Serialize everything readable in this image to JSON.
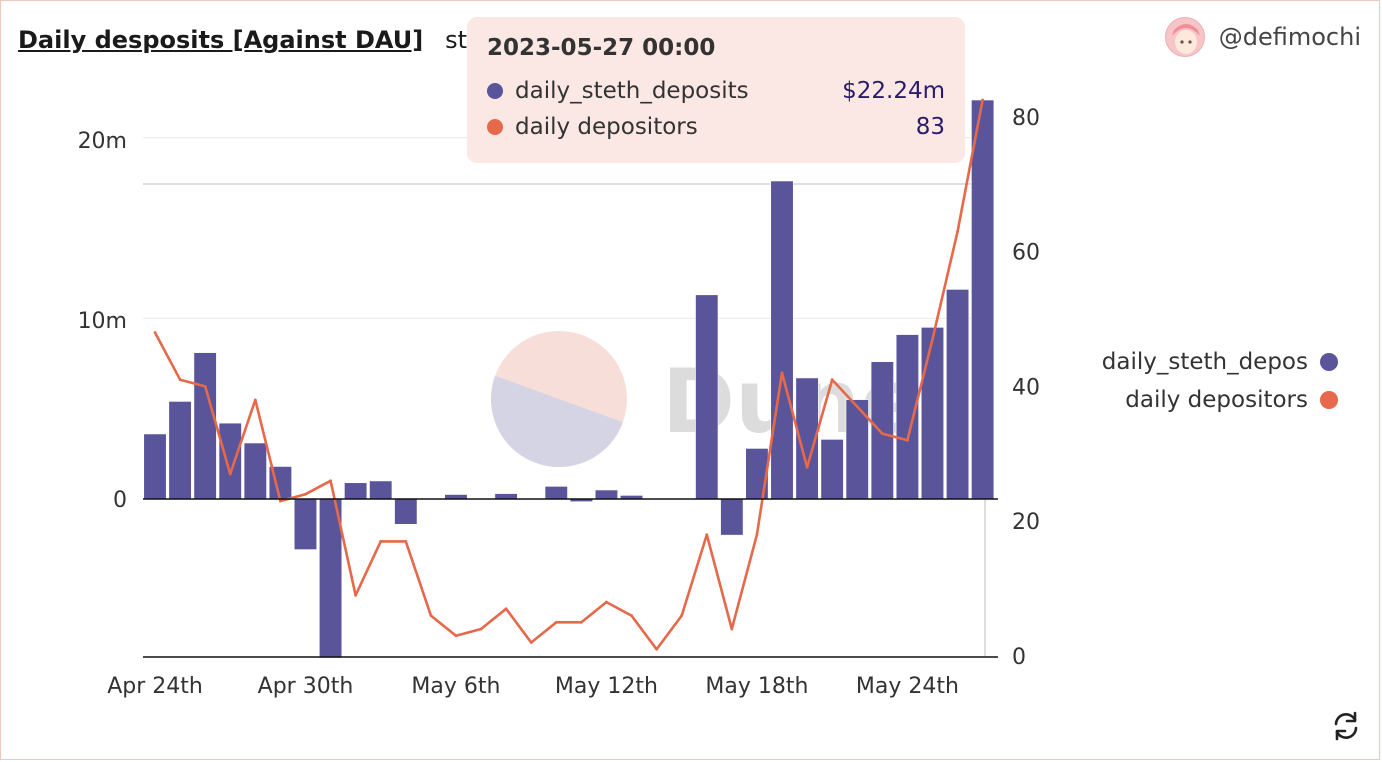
{
  "header": {
    "title": "Daily desposits [Against DAU]",
    "subtitle": "stET"
  },
  "author": {
    "name": "@defimochi",
    "avatar_icon": "anime-avatar-icon"
  },
  "watermark": "Dune",
  "colors": {
    "bars": "#5a559a",
    "line": "#e5694a",
    "watermark_top": "#f8ded8",
    "watermark_bottom": "#d5d4e4"
  },
  "tooltip": {
    "date": "2023-05-27 00:00",
    "rows": [
      {
        "name": "daily_steth_deposits",
        "value": "$22.24m"
      },
      {
        "name": "daily depositors",
        "value": "83"
      }
    ]
  },
  "legend": [
    {
      "label": "daily_steth_depos"
    },
    {
      "label": "daily depositors"
    }
  ],
  "refresh_icon": "refresh-icon",
  "chart_data": {
    "type": "bar",
    "x_ticks": [
      "Apr 24th",
      "Apr 30th",
      "May 6th",
      "May 12th",
      "May 18th",
      "May 24th"
    ],
    "y_left_ticks": [
      "0",
      "10m",
      "20m"
    ],
    "y_right_ticks": [
      "0",
      "20",
      "40",
      "60",
      "80"
    ],
    "y_left_range": [
      -8800000,
      22200000
    ],
    "y_right_range": [
      0,
      83
    ],
    "dates": [
      "2023-04-24",
      "2023-04-25",
      "2023-04-26",
      "2023-04-27",
      "2023-04-28",
      "2023-04-29",
      "2023-04-30",
      "2023-05-01",
      "2023-05-02",
      "2023-05-03",
      "2023-05-04",
      "2023-05-05",
      "2023-05-06",
      "2023-05-07",
      "2023-05-08",
      "2023-05-09",
      "2023-05-10",
      "2023-05-11",
      "2023-05-12",
      "2023-05-13",
      "2023-05-14",
      "2023-05-15",
      "2023-05-16",
      "2023-05-17",
      "2023-05-18",
      "2023-05-19",
      "2023-05-20",
      "2023-05-21",
      "2023-05-22",
      "2023-05-23",
      "2023-05-24",
      "2023-05-25",
      "2023-05-26",
      "2023-05-27"
    ],
    "series": [
      {
        "name": "daily_steth_deposits",
        "kind": "bar",
        "axis": "left",
        "values": [
          3600000,
          5400000,
          8100000,
          4200000,
          3100000,
          1800000,
          -2800000,
          -8800000,
          900000,
          1000000,
          -1400000,
          0,
          250000,
          0,
          300000,
          0,
          700000,
          -150000,
          500000,
          200000,
          0,
          0,
          11300000,
          -2000000,
          2800000,
          17600000,
          6700000,
          3300000,
          5500000,
          7600000,
          9100000,
          9500000,
          11600000,
          22240000
        ]
      },
      {
        "name": "daily depositors",
        "kind": "line",
        "axis": "right",
        "values": [
          48,
          41,
          40,
          27,
          38,
          23,
          24,
          26,
          9,
          17,
          17,
          6,
          3,
          4,
          7,
          2,
          5,
          5,
          8,
          6,
          1,
          6,
          18,
          4,
          18,
          42,
          28,
          41,
          37,
          33,
          32,
          47,
          63,
          83
        ]
      }
    ]
  }
}
